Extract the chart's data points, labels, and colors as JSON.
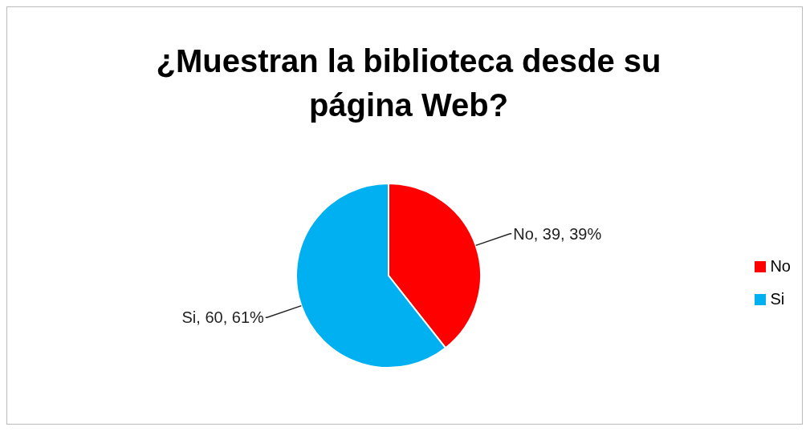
{
  "chart_data": {
    "type": "pie",
    "title": "¿Muestran la biblioteca desde su página Web?",
    "categories": [
      "No",
      "Si"
    ],
    "values": [
      39,
      60
    ],
    "colors": [
      "#ff0000",
      "#00b0f0"
    ],
    "value_labels": [
      "No, 39, 39%",
      "Si, 60, 61%"
    ],
    "legend": "right"
  }
}
